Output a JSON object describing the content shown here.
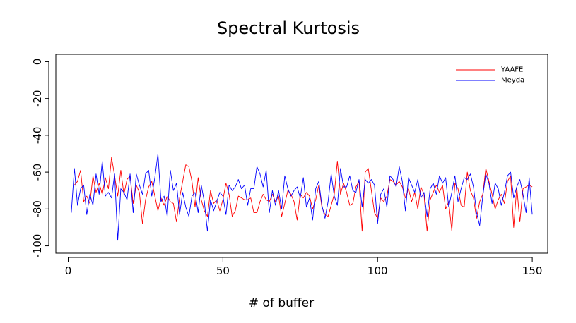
{
  "chart_data": {
    "type": "line",
    "title": "Spectral Kurtosis",
    "xlabel": "# of buffer",
    "ylabel": "",
    "xlim": [
      -4,
      155
    ],
    "ylim": [
      -104,
      4
    ],
    "x_ticks": [
      0,
      50,
      100,
      150
    ],
    "y_ticks": [
      0,
      -20,
      -40,
      -60,
      -80,
      -100
    ],
    "grid": false,
    "legend_position": "top-right",
    "colors": {
      "YAAFE": "#ff0000",
      "Meyda": "#0000ff"
    },
    "x": [
      1,
      2,
      3,
      4,
      5,
      6,
      7,
      8,
      9,
      10,
      11,
      12,
      13,
      14,
      15,
      16,
      17,
      18,
      19,
      20,
      21,
      22,
      23,
      24,
      25,
      26,
      27,
      28,
      29,
      30,
      31,
      32,
      33,
      34,
      35,
      36,
      37,
      38,
      39,
      40,
      41,
      42,
      43,
      44,
      45,
      46,
      47,
      48,
      49,
      50,
      51,
      52,
      53,
      54,
      55,
      56,
      57,
      58,
      59,
      60,
      61,
      62,
      63,
      64,
      65,
      66,
      67,
      68,
      69,
      70,
      71,
      72,
      73,
      74,
      75,
      76,
      77,
      78,
      79,
      80,
      81,
      82,
      83,
      84,
      85,
      86,
      87,
      88,
      89,
      90,
      91,
      92,
      93,
      94,
      95,
      96,
      97,
      98,
      99,
      100,
      101,
      102,
      103,
      104,
      105,
      106,
      107,
      108,
      109,
      110,
      111,
      112,
      113,
      114,
      115,
      116,
      117,
      118,
      119,
      120,
      121,
      122,
      123,
      124,
      125,
      126,
      127,
      128,
      129,
      130,
      131,
      132,
      133,
      134,
      135,
      136,
      137,
      138,
      139,
      140,
      141,
      142,
      143,
      144,
      145,
      146,
      147,
      148,
      149,
      150
    ],
    "series": [
      {
        "name": "YAAFE",
        "values": [
          -67,
          -67,
          -65,
          -59,
          -76,
          -73,
          -77,
          -62,
          -71,
          -66,
          -72,
          -63,
          -69,
          -52,
          -62,
          -73,
          -59,
          -72,
          -64,
          -62,
          -77,
          -67,
          -71,
          -88,
          -75,
          -68,
          -65,
          -73,
          -81,
          -74,
          -78,
          -73,
          -76,
          -77,
          -87,
          -74,
          -65,
          -56,
          -57,
          -65,
          -79,
          -63,
          -75,
          -81,
          -84,
          -70,
          -77,
          -75,
          -81,
          -75,
          -66,
          -72,
          -84,
          -81,
          -73,
          -74,
          -75,
          -75,
          -74,
          -82,
          -82,
          -76,
          -72,
          -75,
          -76,
          -72,
          -76,
          -73,
          -84,
          -77,
          -70,
          -72,
          -76,
          -86,
          -72,
          -74,
          -71,
          -73,
          -80,
          -75,
          -67,
          -79,
          -83,
          -84,
          -78,
          -72,
          -54,
          -72,
          -66,
          -71,
          -78,
          -77,
          -68,
          -65,
          -92,
          -60,
          -58,
          -70,
          -82,
          -85,
          -74,
          -76,
          -73,
          -64,
          -65,
          -67,
          -65,
          -68,
          -74,
          -69,
          -76,
          -71,
          -80,
          -68,
          -72,
          -92,
          -75,
          -71,
          -67,
          -71,
          -67,
          -80,
          -76,
          -92,
          -66,
          -69,
          -78,
          -79,
          -60,
          -70,
          -74,
          -85,
          -76,
          -72,
          -58,
          -65,
          -72,
          -80,
          -75,
          -72,
          -77,
          -65,
          -62,
          -90,
          -68,
          -87,
          -69,
          -68,
          -67,
          -68
        ]
      },
      {
        "name": "Meyda",
        "values": [
          -82,
          -58,
          -78,
          -69,
          -67,
          -83,
          -72,
          -78,
          -61,
          -72,
          -54,
          -73,
          -71,
          -74,
          -61,
          -97,
          -69,
          -71,
          -75,
          -61,
          -82,
          -61,
          -67,
          -72,
          -61,
          -59,
          -73,
          -63,
          -50,
          -76,
          -73,
          -84,
          -59,
          -70,
          -66,
          -83,
          -71,
          -79,
          -84,
          -73,
          -71,
          -82,
          -67,
          -76,
          -92,
          -75,
          -81,
          -76,
          -71,
          -73,
          -83,
          -67,
          -70,
          -68,
          -64,
          -69,
          -67,
          -78,
          -69,
          -69,
          -57,
          -61,
          -68,
          -59,
          -82,
          -70,
          -78,
          -70,
          -80,
          -62,
          -69,
          -73,
          -70,
          -68,
          -74,
          -63,
          -79,
          -74,
          -86,
          -69,
          -65,
          -78,
          -85,
          -76,
          -61,
          -73,
          -78,
          -58,
          -68,
          -68,
          -62,
          -70,
          -71,
          -64,
          -79,
          -64,
          -66,
          -64,
          -67,
          -88,
          -72,
          -69,
          -79,
          -62,
          -64,
          -68,
          -57,
          -65,
          -81,
          -63,
          -67,
          -71,
          -64,
          -74,
          -71,
          -84,
          -69,
          -66,
          -72,
          -62,
          -66,
          -63,
          -79,
          -71,
          -62,
          -76,
          -69,
          -63,
          -64,
          -61,
          -68,
          -82,
          -89,
          -73,
          -61,
          -66,
          -77,
          -66,
          -69,
          -78,
          -71,
          -62,
          -60,
          -74,
          -68,
          -64,
          -72,
          -82,
          -63,
          -83
        ]
      }
    ]
  }
}
